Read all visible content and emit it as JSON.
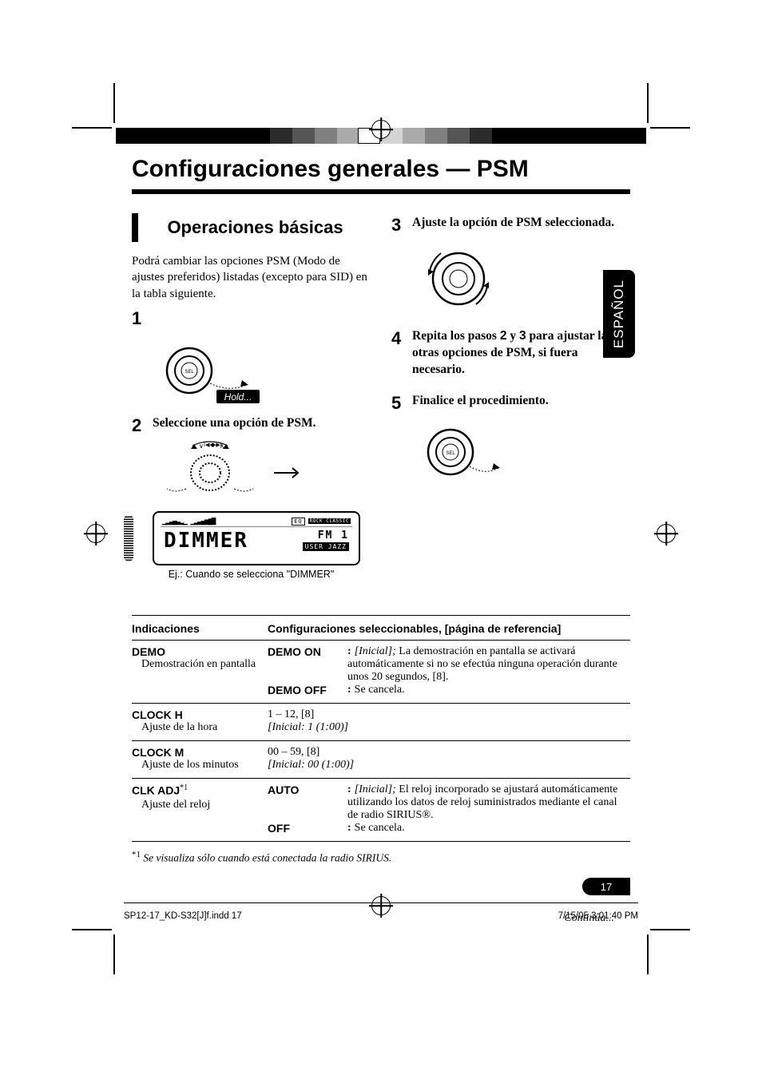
{
  "meta": {
    "language_tab": "ESPAÑOL",
    "page_number": "17",
    "continues": "Continúa...",
    "footer_left": "SP12-17_KD-S32[J]f.indd   17",
    "footer_right": "7/15/05   3:01:40 PM"
  },
  "heading": "Configuraciones generales — PSM",
  "section": "Operaciones básicas",
  "intro": "Podrá cambiar las opciones PSM (Modo de ajustes preferidos) listadas (excepto para SID) en la tabla siguiente.",
  "hold_tag": "Hold...",
  "steps": {
    "s2": "Seleccione una opción de PSM.",
    "display_caption": "Ej.: Cuando se selecciona \"DIMMER\"",
    "display_top_text": "EQ",
    "display_tag": "ROCK CLASSIC",
    "display_word": "DIMMER",
    "display_fm": "FM 1",
    "display_rank": "USER JAZZ",
    "s3": "Ajuste la opción de PSM seleccionada.",
    "s4a": "Repita los pasos ",
    "s4b_2": "2",
    "s4b_y": " y ",
    "s4b_3": "3",
    "s4c": " para ajustar las otras opciones de PSM, si fuera necesario.",
    "s5": "Finalice el procedimiento."
  },
  "table": {
    "head_left": "Indicaciones",
    "head_right": "Configuraciones seleccionables, [página de referencia]",
    "rows": [
      {
        "name": "DEMO",
        "sub": "Demostración en pantalla",
        "opts": [
          {
            "label": "DEMO ON",
            "colon": ":",
            "initial": "[Inicial]; ",
            "text": "La demostración en pantalla se activará automáticamente si no se efectúa ninguna operación durante unos 20 segundos, [8]."
          },
          {
            "label": "DEMO OFF",
            "colon": ":",
            "text": "Se cancela."
          }
        ]
      },
      {
        "name": "CLOCK H",
        "sub": "Ajuste de la hora",
        "range": "1 – 12, [8]",
        "initial": "[Inicial: 1 (1:00)]"
      },
      {
        "name": "CLOCK M",
        "sub": "Ajuste de los minutos",
        "range": "00 – 59, [8]",
        "initial": "[Inicial: 00 (1:00)]"
      },
      {
        "name": "CLK ADJ",
        "sup": "*1",
        "sub": "Ajuste del reloj",
        "opts": [
          {
            "label": "AUTO",
            "colon": ":",
            "initial": "[Inicial]; ",
            "text": "El reloj incorporado se ajustará automáticamente utilizando los datos de reloj suministrados mediante el canal de radio SIRIUS®."
          },
          {
            "label": "OFF",
            "colon": ":",
            "text": "Se cancela."
          }
        ]
      }
    ],
    "footnote_marker": "*1",
    "footnote": "Se visualiza sólo cuando está conectada la radio SIRIUS."
  },
  "style": {
    "background_color": "#ffffff",
    "text_color": "#000000",
    "title_fontsize": 30,
    "body_fontsize": 15,
    "table_fontsize": 14,
    "lang_tab_bg": "#000000",
    "lang_tab_fg": "#ffffff",
    "regbar_colors": [
      "#000000",
      "#2b2b2b",
      "#555555",
      "#808080",
      "#aaaaaa",
      "#d4d4d4",
      "#ffffff"
    ],
    "crop_color": "#000000",
    "rule_height": 6,
    "section_bar_width": 8,
    "display_word_font": "monospace",
    "hold_bg": "#000000",
    "hold_fg": "#ffffff"
  }
}
